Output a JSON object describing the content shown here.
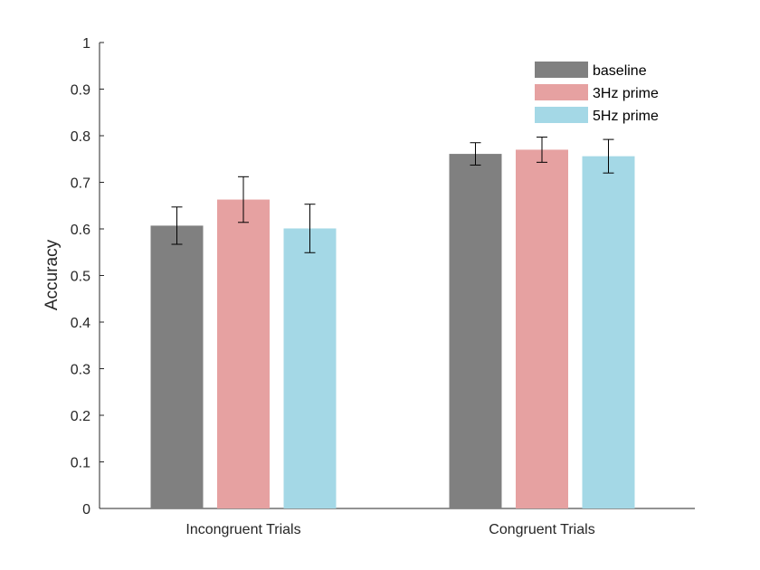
{
  "chart_data": {
    "type": "bar",
    "categories": [
      "Incongruent Trials",
      "Congruent Trials"
    ],
    "series": [
      {
        "name": "baseline",
        "color": "#808080",
        "values": [
          0.607,
          0.761
        ],
        "error": [
          0.04,
          0.024
        ]
      },
      {
        "name": "3Hz prime",
        "color": "#e6a1a1",
        "values": [
          0.663,
          0.77
        ],
        "error": [
          0.049,
          0.027
        ]
      },
      {
        "name": "5Hz prime",
        "color": "#a4d8e6",
        "values": [
          0.601,
          0.756
        ],
        "error": [
          0.052,
          0.036
        ]
      }
    ],
    "ylabel": "Accuracy",
    "xlabel": "",
    "title": "",
    "ylim": [
      0,
      1
    ],
    "yticks": [
      "0",
      "0.1",
      "0.2",
      "0.3",
      "0.4",
      "0.5",
      "0.6",
      "0.7",
      "0.8",
      "0.9",
      "1"
    ],
    "grid": false,
    "legend_position": "top-right"
  }
}
